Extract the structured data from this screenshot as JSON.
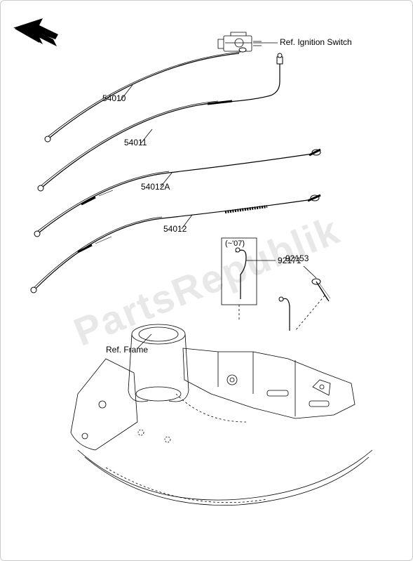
{
  "watermark": "PartsRepublik",
  "refs": {
    "ignition_switch": "Ref. Ignition Switch",
    "frame": "Ref. Frame"
  },
  "callouts": {
    "c54010": "54010",
    "c54011": "54011",
    "c54012A": "54012A",
    "c54012": "54012",
    "c92171": "92171",
    "c92153": "92153",
    "c92171_note": "(~'07)"
  },
  "style": {
    "line_color": "#000000",
    "line_width": 1,
    "thin_line_width": 0.8,
    "dashed_pattern": "3,3",
    "label_fontsize": 12,
    "ref_fontsize": 12,
    "watermark_color": "#e8e8e8",
    "watermark_fontsize": 56,
    "background": "#ffffff"
  },
  "diagram_type": "exploded-parts"
}
